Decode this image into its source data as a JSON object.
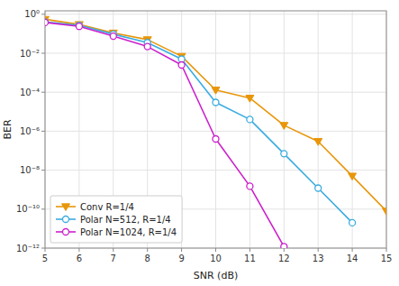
{
  "chart_data": {
    "type": "line",
    "x": [
      5,
      6,
      7,
      8,
      9,
      10,
      11,
      12,
      13,
      14,
      15
    ],
    "series": [
      {
        "name": "Conv R=1/4",
        "color": "#E8960A",
        "marker": "triangle-down",
        "values": [
          0.55,
          0.3,
          0.11,
          0.05,
          0.007,
          0.00013,
          5e-05,
          2e-06,
          3e-07,
          5e-09,
          8e-11
        ]
      },
      {
        "name": "Polar N=512, R=1/4",
        "color": "#3AACE0",
        "marker": "circle-open",
        "values": [
          0.4,
          0.27,
          0.095,
          0.035,
          0.005,
          3e-05,
          4e-06,
          7e-08,
          1.2e-09,
          2e-11,
          null
        ]
      },
      {
        "name": "Polar N=1024, R=1/4",
        "color": "#CC20CC",
        "marker": "circle-open",
        "values": [
          0.38,
          0.24,
          0.075,
          0.022,
          0.0025,
          4e-07,
          1.5e-09,
          1.2e-12,
          null,
          null,
          null
        ]
      }
    ],
    "xlabel": "SNR (dB)",
    "ylabel": "BER",
    "xlim": [
      5,
      15
    ],
    "ylim": [
      1e-12,
      1.5
    ],
    "xticks": [
      5,
      6,
      7,
      8,
      9,
      10,
      11,
      12,
      13,
      14,
      15
    ],
    "yticks": [
      {
        "value": 1e-12,
        "label": "10⁻¹²"
      },
      {
        "value": 1e-10,
        "label": "10⁻¹⁰"
      },
      {
        "value": 1e-08,
        "label": "10⁻⁸"
      },
      {
        "value": 1e-06,
        "label": "10⁻⁶"
      },
      {
        "value": 0.0001,
        "label": "10⁻⁴"
      },
      {
        "value": 0.01,
        "label": "10⁻²"
      },
      {
        "value": 1,
        "label": "10⁰"
      }
    ],
    "log": "y",
    "grid": true,
    "legend": "lower left"
  }
}
